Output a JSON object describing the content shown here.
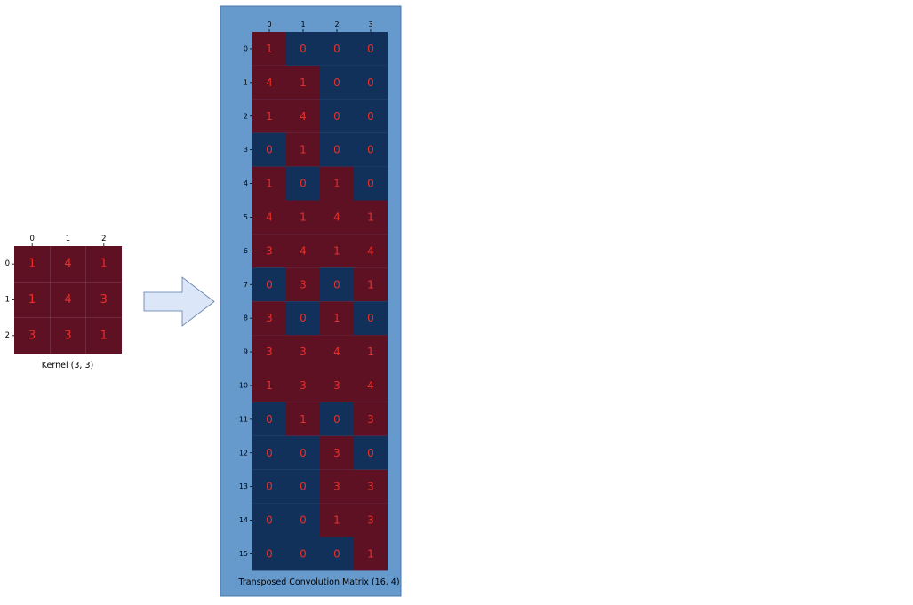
{
  "colors": {
    "nonzero": "#5f1124",
    "zero": "#12315a",
    "value_text": "#e8302a",
    "panel_background": "#6699cc",
    "arrow_fill": "#dbe7f8",
    "arrow_stroke": "#5b7aa8"
  },
  "kernel": {
    "caption": "Kernel (3, 3)",
    "col_ticks": [
      "0",
      "1",
      "2"
    ],
    "row_ticks": [
      "0",
      "1",
      "2"
    ],
    "values": [
      [
        1,
        4,
        1
      ],
      [
        1,
        4,
        3
      ],
      [
        3,
        3,
        1
      ]
    ]
  },
  "arrow": {
    "icon": "right-arrow-icon"
  },
  "matrix": {
    "caption": "Transposed Convolution Matrix (16, 4)",
    "col_ticks": [
      "0",
      "1",
      "2",
      "3"
    ],
    "row_ticks": [
      "0",
      "1",
      "2",
      "3",
      "4",
      "5",
      "6",
      "7",
      "8",
      "9",
      "10",
      "11",
      "12",
      "13",
      "14",
      "15"
    ],
    "values": [
      [
        1,
        0,
        0,
        0
      ],
      [
        4,
        1,
        0,
        0
      ],
      [
        1,
        4,
        0,
        0
      ],
      [
        0,
        1,
        0,
        0
      ],
      [
        1,
        0,
        1,
        0
      ],
      [
        4,
        1,
        4,
        1
      ],
      [
        3,
        4,
        1,
        4
      ],
      [
        0,
        3,
        0,
        1
      ],
      [
        3,
        0,
        1,
        0
      ],
      [
        3,
        3,
        4,
        1
      ],
      [
        1,
        3,
        3,
        4
      ],
      [
        0,
        1,
        0,
        3
      ],
      [
        0,
        0,
        3,
        0
      ],
      [
        0,
        0,
        3,
        3
      ],
      [
        0,
        0,
        1,
        3
      ],
      [
        0,
        0,
        0,
        1
      ]
    ]
  }
}
